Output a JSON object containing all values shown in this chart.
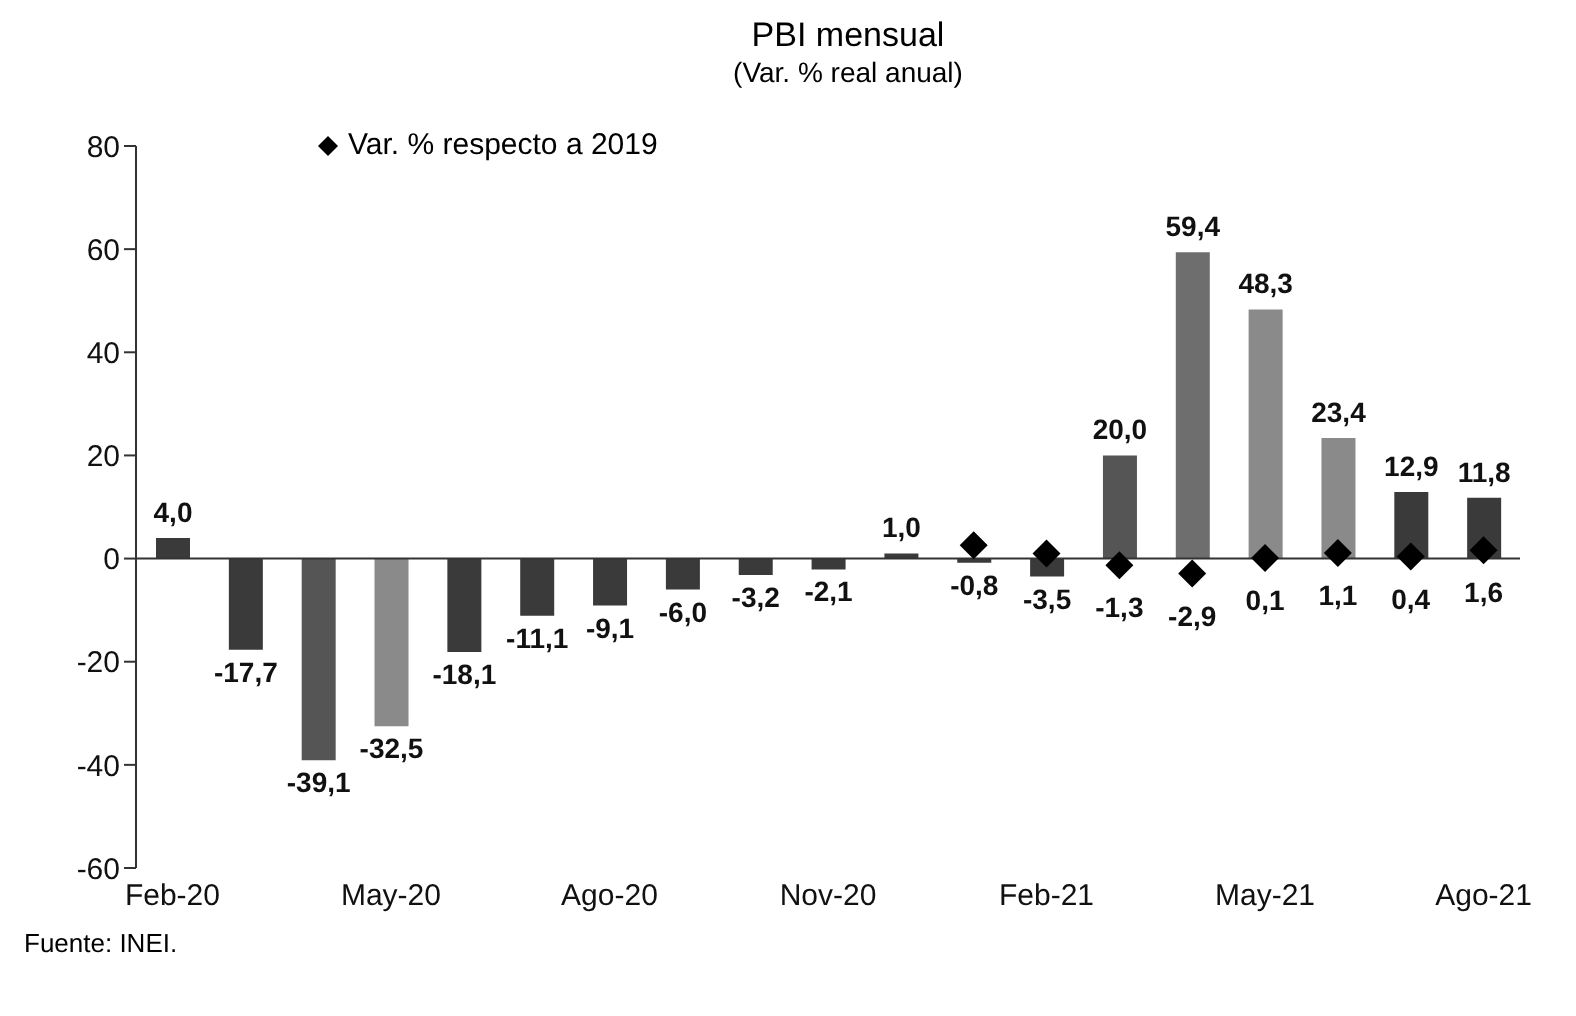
{
  "chart_data": {
    "type": "bar",
    "title": "PBI mensual",
    "subtitle": "(Var. % real anual)",
    "categories": [
      "Feb-20",
      null,
      null,
      "May-20",
      null,
      null,
      "Ago-20",
      null,
      null,
      "Nov-20",
      null,
      null,
      "Feb-21",
      null,
      null,
      "May-21",
      null,
      null,
      "Ago-21"
    ],
    "series": [
      {
        "values": [
          4.0,
          -17.7,
          -39.1,
          -32.5,
          -18.1,
          -11.1,
          -9.1,
          -6.0,
          -3.2,
          -2.1,
          1.0,
          -0.8,
          -3.5,
          20.0,
          59.4,
          48.3,
          23.4,
          12.9,
          11.8
        ],
        "colors": [
          "#3a3a3a",
          "#3a3a3a",
          "#555555",
          "#8a8a8a",
          "#3a3a3a",
          "#3a3a3a",
          "#3a3a3a",
          "#3a3a3a",
          "#3a3a3a",
          "#3a3a3a",
          "#3a3a3a",
          "#3a3a3a",
          "#3a3a3a",
          "#555555",
          "#6e6e6e",
          "#8a8a8a",
          "#8a8a8a",
          "#3a3a3a",
          "#3a3a3a"
        ],
        "value_labels": [
          "4,0",
          "-17,7",
          "-39,1",
          "-32,5",
          "-18,1",
          "-11,1",
          "-9,1",
          "-6,0",
          "-3,2",
          "-2,1",
          "1,0",
          "-0,8",
          "-3,5",
          "20,0",
          "59,4",
          "48,3",
          "23,4",
          "12,9",
          "11,8"
        ]
      },
      {
        "type": "scatter",
        "name": "Var. % respecto a 2019",
        "color": "#000000",
        "marker": "diamond",
        "values": [
          null,
          null,
          null,
          null,
          null,
          null,
          null,
          null,
          null,
          null,
          null,
          2.6,
          1.0,
          -1.3,
          -2.9,
          0.1,
          1.1,
          0.4,
          1.6
        ],
        "value_labels": [
          null,
          null,
          null,
          null,
          null,
          null,
          null,
          null,
          null,
          null,
          null,
          null,
          null,
          "-1,3",
          "-2,9",
          "0,1",
          "1,1",
          "0,4",
          "1,6"
        ]
      }
    ],
    "ylim": [
      -60,
      80
    ],
    "yticks": [
      -60,
      -40,
      -20,
      0,
      20,
      40,
      60,
      80
    ],
    "legend": "top left",
    "annotations": [
      "Fuente: INEI."
    ]
  }
}
